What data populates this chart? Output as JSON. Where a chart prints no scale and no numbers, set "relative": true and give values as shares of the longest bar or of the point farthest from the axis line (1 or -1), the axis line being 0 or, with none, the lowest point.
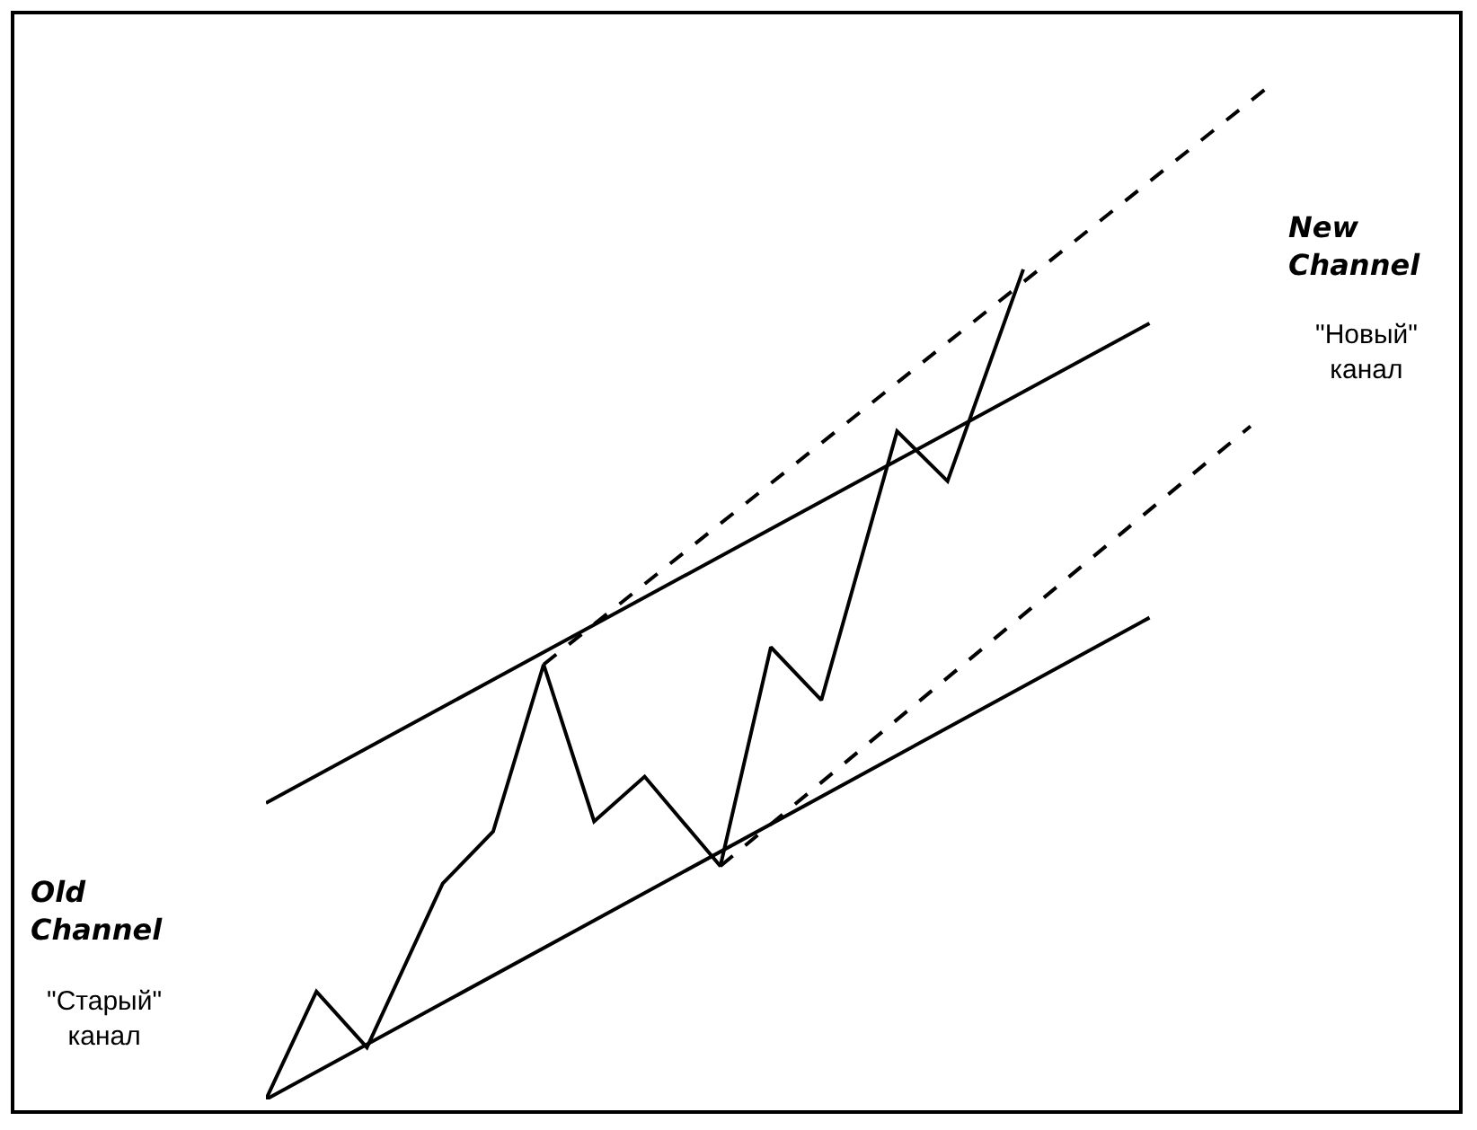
{
  "chart_data": {
    "type": "line",
    "relative": true,
    "grid": false,
    "marker": "none",
    "annotations": [
      "Old\nChannel",
      "\"Старый\"\nканал",
      "New\nChannel",
      "\"Новый\"\nканал"
    ],
    "categories": [
      null,
      null,
      null,
      null,
      null,
      null,
      null,
      null,
      null,
      null,
      null,
      null,
      null,
      null,
      null,
      null,
      null,
      null,
      null,
      null,
      null,
      null,
      null,
      null,
      null,
      null,
      null,
      null,
      null,
      null,
      null,
      null,
      null,
      null,
      null,
      null,
      null,
      null,
      null,
      null,
      null
    ],
    "series": [
      {
        "color": "#000000",
        "line_style": "solid",
        "values": [
          0,
          null,
          0.106,
          null,
          0.051,
          null,
          null,
          0.212,
          null,
          0.263,
          null,
          0.427,
          null,
          0.273,
          null,
          0.317,
          null,
          null,
          0.229,
          null,
          0.444,
          null,
          0.392,
          null,
          null,
          0.656,
          null,
          0.607,
          null,
          null,
          0.815,
          null,
          null,
          null,
          null,
          null,
          null,
          null,
          null,
          null,
          null
        ]
      },
      {
        "color": "#000000",
        "line_style": "solid",
        "values": [
          0.291,
          null,
          null,
          null,
          null,
          null,
          null,
          null,
          null,
          null,
          null,
          null,
          null,
          null,
          null,
          null,
          null,
          null,
          null,
          null,
          null,
          null,
          null,
          null,
          null,
          null,
          null,
          null,
          null,
          null,
          null,
          null,
          null,
          null,
          null,
          0.762,
          null,
          null,
          null,
          null,
          null
        ]
      },
      {
        "color": "#000000",
        "line_style": "solid",
        "values": [
          0,
          null,
          null,
          null,
          null,
          null,
          null,
          null,
          null,
          null,
          null,
          null,
          null,
          null,
          null,
          null,
          null,
          null,
          null,
          null,
          null,
          null,
          null,
          null,
          null,
          null,
          null,
          null,
          null,
          null,
          null,
          null,
          null,
          null,
          null,
          0.473,
          null,
          null,
          null,
          null,
          null
        ]
      },
      {
        "color": "#000000",
        "line_style": "dashed",
        "values": [
          null,
          null,
          null,
          null,
          null,
          null,
          null,
          null,
          null,
          null,
          null,
          0.427,
          null,
          null,
          null,
          null,
          null,
          null,
          null,
          null,
          null,
          null,
          null,
          null,
          null,
          null,
          null,
          null,
          null,
          null,
          null,
          null,
          null,
          null,
          null,
          null,
          null,
          null,
          null,
          null,
          1
        ]
      },
      {
        "color": "#000000",
        "line_style": "dashed",
        "values": [
          null,
          null,
          null,
          null,
          null,
          null,
          null,
          null,
          null,
          null,
          null,
          null,
          null,
          null,
          null,
          null,
          null,
          null,
          0.229,
          null,
          null,
          null,
          null,
          null,
          null,
          null,
          null,
          null,
          null,
          null,
          null,
          null,
          null,
          null,
          null,
          null,
          null,
          null,
          null,
          0.661,
          null
        ]
      }
    ]
  }
}
